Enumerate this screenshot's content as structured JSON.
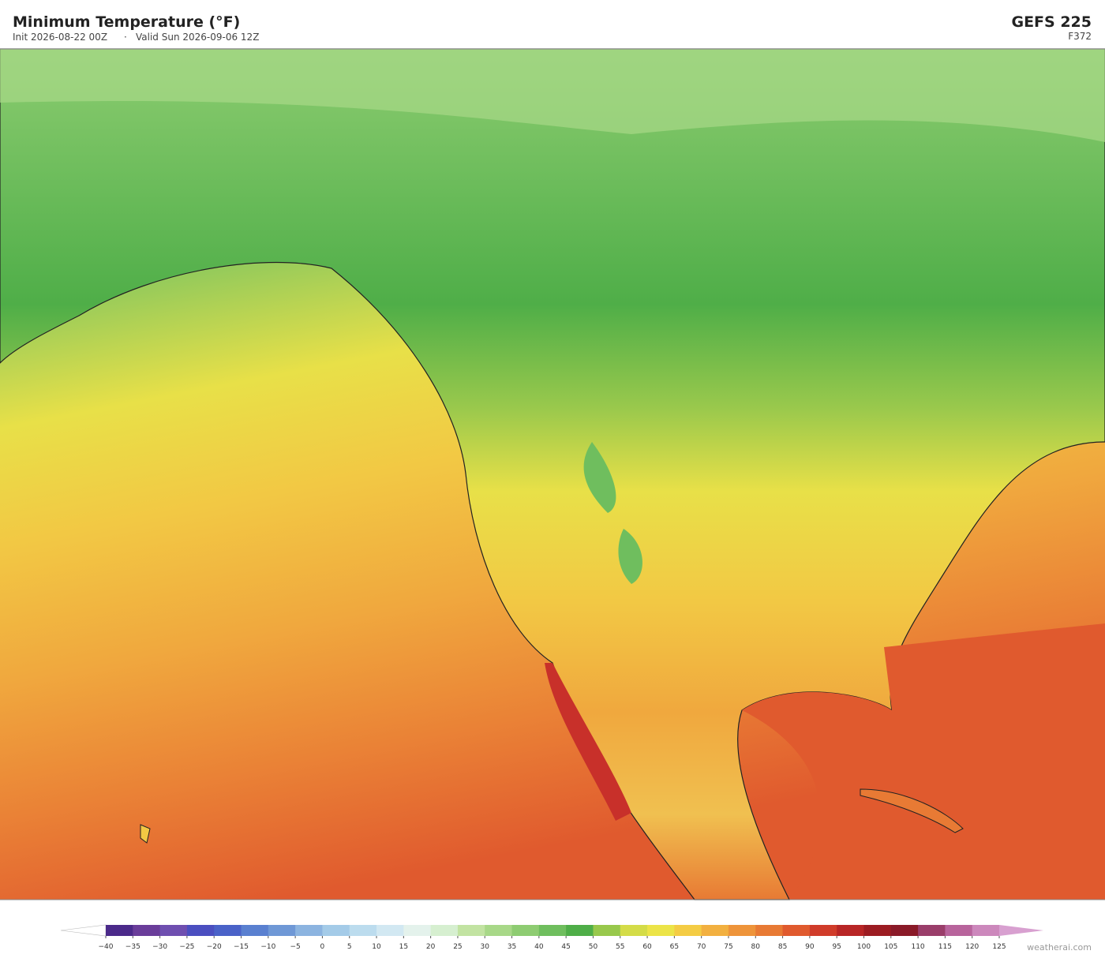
{
  "header": {
    "title": "Minimum Temperature  (°F)",
    "init": "Init 2026-08-22 00Z",
    "separator": "·",
    "valid": "Valid Sun 2026-09-06 12Z",
    "model": "GEFS  225",
    "forecast_hour": "F372"
  },
  "colorbar": {
    "ticks": [
      {
        "value": -40,
        "label": "−40"
      },
      {
        "value": -35,
        "label": "−35"
      },
      {
        "value": -30,
        "label": "−30"
      },
      {
        "value": -25,
        "label": "−25"
      },
      {
        "value": -20,
        "label": "−20"
      },
      {
        "value": -15,
        "label": "−15"
      },
      {
        "value": -10,
        "label": "−10"
      },
      {
        "value": -5,
        "label": "−5"
      },
      0,
      5,
      10,
      15,
      20,
      25,
      30,
      35,
      40,
      45,
      50,
      55,
      60,
      65,
      70,
      75,
      80,
      85,
      90,
      95,
      100,
      105,
      110,
      115,
      120,
      125
    ],
    "colors": [
      "#4b2a8a",
      "#6a3d9a",
      "#6f4fb0",
      "#4b4fc0",
      "#4a62c8",
      "#5a80d0",
      "#6f98d6",
      "#8cb4e0",
      "#a4cbe8",
      "#bcdcee",
      "#d2e8f2",
      "#e4f2ec",
      "#d6efd0",
      "#c2e3a2",
      "#a8d888",
      "#8ecc72",
      "#6fbe5e",
      "#4fae48",
      "#98c84c",
      "#d4dc48",
      "#ece448",
      "#f4cc44",
      "#f2b040",
      "#ee943a",
      "#e87a34",
      "#e05a2e",
      "#d03c2a",
      "#b82626",
      "#9c1c22",
      "#8a1a28",
      "#9a3e6a",
      "#b8649c",
      "#cc88bc"
    ],
    "under_color": "#ffffff",
    "over_color": "#d8a0d0"
  },
  "credit": "weatherai.com"
}
